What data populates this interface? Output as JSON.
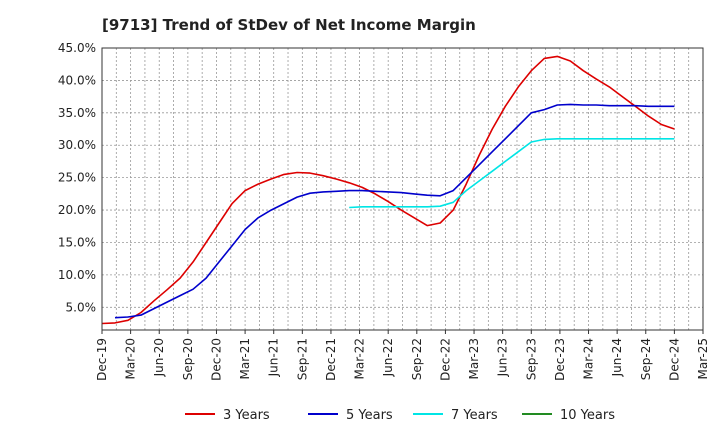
{
  "chart_data": {
    "type": "line",
    "title": "[9713]  Trend of StDev of Net Income Margin",
    "xlabel": "",
    "ylabel": "",
    "ylim": [
      0.015,
      0.45
    ],
    "y_ticks": [
      {
        "value": 0.05,
        "label": "5.0%"
      },
      {
        "value": 0.1,
        "label": "10.0%"
      },
      {
        "value": 0.15,
        "label": "15.0%"
      },
      {
        "value": 0.2,
        "label": "20.0%"
      },
      {
        "value": 0.25,
        "label": "25.0%"
      },
      {
        "value": 0.3,
        "label": "30.0%"
      },
      {
        "value": 0.35,
        "label": "35.0%"
      },
      {
        "value": 0.4,
        "label": "40.0%"
      },
      {
        "value": 0.45,
        "label": "45.0%"
      }
    ],
    "x_ticks": [
      "Dec-19",
      "Mar-20",
      "Jun-20",
      "Sep-20",
      "Dec-20",
      "Mar-21",
      "Jun-21",
      "Sep-21",
      "Dec-21",
      "Mar-22",
      "Jun-22",
      "Sep-22",
      "Dec-22",
      "Mar-23",
      "Jun-23",
      "Sep-23",
      "Dec-23",
      "Mar-24",
      "Jun-24",
      "Sep-24",
      "Dec-24",
      "Mar-25"
    ],
    "grid": true,
    "legend_position": "bottom",
    "series": [
      {
        "name": "3 Years",
        "color": "#dd0000",
        "points": [
          [
            0,
            0.025
          ],
          [
            1,
            0.026
          ],
          [
            2,
            0.03
          ],
          [
            3,
            0.042
          ],
          [
            4,
            0.06
          ],
          [
            5,
            0.077
          ],
          [
            6,
            0.095
          ],
          [
            7,
            0.12
          ],
          [
            8,
            0.15
          ],
          [
            9,
            0.18
          ],
          [
            10,
            0.21
          ],
          [
            11,
            0.23
          ],
          [
            12,
            0.24
          ],
          [
            13,
            0.248
          ],
          [
            14,
            0.255
          ],
          [
            15,
            0.258
          ],
          [
            16,
            0.257
          ],
          [
            17,
            0.253
          ],
          [
            18,
            0.248
          ],
          [
            19,
            0.242
          ],
          [
            20,
            0.235
          ],
          [
            21,
            0.225
          ],
          [
            22,
            0.213
          ],
          [
            23,
            0.2
          ],
          [
            24,
            0.188
          ],
          [
            25,
            0.176
          ],
          [
            26,
            0.18
          ],
          [
            27,
            0.2
          ],
          [
            28,
            0.24
          ],
          [
            29,
            0.285
          ],
          [
            30,
            0.325
          ],
          [
            31,
            0.36
          ],
          [
            32,
            0.39
          ],
          [
            33,
            0.415
          ],
          [
            34,
            0.434
          ],
          [
            35,
            0.437
          ],
          [
            36,
            0.43
          ],
          [
            37,
            0.415
          ],
          [
            38,
            0.402
          ],
          [
            39,
            0.39
          ],
          [
            40,
            0.375
          ],
          [
            41,
            0.36
          ],
          [
            42,
            0.345
          ],
          [
            43,
            0.332
          ],
          [
            44,
            0.325
          ]
        ]
      },
      {
        "name": "5 Years",
        "color": "#0000cc",
        "points": [
          [
            1,
            0.034
          ],
          [
            2,
            0.035
          ],
          [
            3,
            0.038
          ],
          [
            4,
            0.048
          ],
          [
            5,
            0.058
          ],
          [
            6,
            0.068
          ],
          [
            7,
            0.078
          ],
          [
            8,
            0.095
          ],
          [
            9,
            0.12
          ],
          [
            10,
            0.145
          ],
          [
            11,
            0.17
          ],
          [
            12,
            0.188
          ],
          [
            13,
            0.2
          ],
          [
            14,
            0.21
          ],
          [
            15,
            0.22
          ],
          [
            16,
            0.226
          ],
          [
            17,
            0.228
          ],
          [
            18,
            0.229
          ],
          [
            19,
            0.23
          ],
          [
            20,
            0.23
          ],
          [
            21,
            0.229
          ],
          [
            22,
            0.228
          ],
          [
            23,
            0.227
          ],
          [
            24,
            0.225
          ],
          [
            25,
            0.223
          ],
          [
            26,
            0.222
          ],
          [
            27,
            0.23
          ],
          [
            28,
            0.25
          ],
          [
            29,
            0.27
          ],
          [
            30,
            0.29
          ],
          [
            31,
            0.31
          ],
          [
            32,
            0.33
          ],
          [
            33,
            0.35
          ],
          [
            34,
            0.355
          ],
          [
            35,
            0.362
          ],
          [
            36,
            0.363
          ],
          [
            37,
            0.362
          ],
          [
            38,
            0.362
          ],
          [
            39,
            0.361
          ],
          [
            40,
            0.361
          ],
          [
            41,
            0.361
          ],
          [
            42,
            0.36
          ],
          [
            43,
            0.36
          ],
          [
            44,
            0.36
          ]
        ]
      },
      {
        "name": "7 Years",
        "color": "#00e5e5",
        "points": [
          [
            19,
            0.204
          ],
          [
            20,
            0.205
          ],
          [
            21,
            0.205
          ],
          [
            22,
            0.205
          ],
          [
            23,
            0.205
          ],
          [
            24,
            0.205
          ],
          [
            25,
            0.205
          ],
          [
            26,
            0.206
          ],
          [
            27,
            0.212
          ],
          [
            28,
            0.23
          ],
          [
            29,
            0.245
          ],
          [
            30,
            0.26
          ],
          [
            31,
            0.275
          ],
          [
            32,
            0.29
          ],
          [
            33,
            0.305
          ],
          [
            34,
            0.309
          ],
          [
            35,
            0.31
          ],
          [
            36,
            0.31
          ],
          [
            37,
            0.31
          ],
          [
            38,
            0.31
          ],
          [
            39,
            0.31
          ],
          [
            40,
            0.31
          ],
          [
            41,
            0.31
          ],
          [
            42,
            0.31
          ],
          [
            43,
            0.31
          ],
          [
            44,
            0.31
          ]
        ]
      },
      {
        "name": "10 Years",
        "color": "#228b22",
        "points": []
      }
    ]
  }
}
